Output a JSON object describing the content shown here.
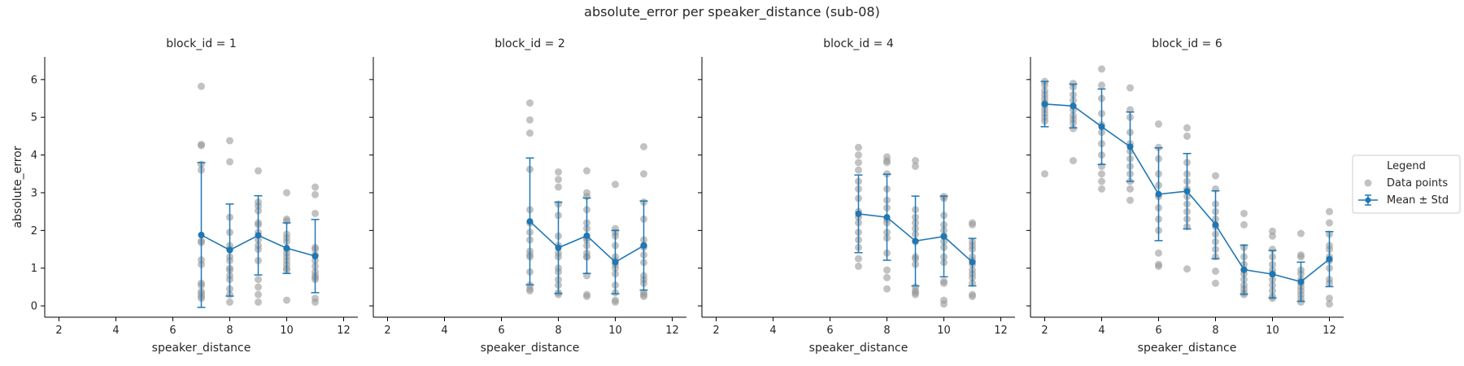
{
  "chart_data": {
    "type": "scatter",
    "title": "absolute_error per speaker_distance (sub-08)",
    "xlabel": "speaker_distance",
    "ylabel": "absolute_error",
    "xlim": [
      1.5,
      12.5
    ],
    "ylim": [
      -0.3,
      6.6
    ],
    "xticks": [
      2,
      4,
      6,
      8,
      10,
      12
    ],
    "yticks": [
      0,
      1,
      2,
      3,
      4,
      5,
      6
    ],
    "grid": false,
    "legend": {
      "title": "Legend",
      "position": "right",
      "entries": [
        "Data points",
        "Mean ± Std"
      ]
    },
    "colors": {
      "points": "#999999",
      "mean": "#1f77b4"
    },
    "panels": [
      {
        "title": "block_id = 1",
        "points": {
          "7": [
            5.82,
            4.28,
            4.25,
            3.75,
            3.6,
            1.72,
            1.68,
            1.22,
            1.1,
            0.6,
            0.55,
            0.38,
            0.32,
            0.25,
            0.2
          ],
          "8": [
            4.38,
            3.82,
            2.35,
            1.95,
            1.6,
            1.5,
            1.3,
            1.2,
            1.0,
            0.95,
            0.8,
            0.7,
            0.45,
            0.3,
            0.1
          ],
          "9": [
            3.58,
            2.75,
            2.65,
            2.52,
            2.2,
            2.15,
            1.95,
            1.75,
            1.6,
            1.5,
            1.2,
            0.7,
            0.5,
            0.3,
            0.1
          ],
          "10": [
            3.0,
            2.3,
            2.25,
            1.9,
            1.8,
            1.7,
            1.5,
            1.4,
            1.3,
            1.2,
            1.1,
            1.0,
            0.95,
            0.15
          ],
          "11": [
            3.15,
            2.95,
            2.45,
            1.55,
            1.5,
            1.35,
            1.2,
            1.05,
            0.9,
            0.8,
            0.75,
            0.7,
            0.2,
            0.1
          ]
        },
        "mean": [
          {
            "x": 7,
            "mean": 1.88,
            "std": 1.92
          },
          {
            "x": 8,
            "mean": 1.48,
            "std": 1.22
          },
          {
            "x": 9,
            "mean": 1.87,
            "std": 1.05
          },
          {
            "x": 10,
            "mean": 1.53,
            "std": 0.67
          },
          {
            "x": 11,
            "mean": 1.32,
            "std": 0.97
          }
        ]
      },
      {
        "title": "block_id = 2",
        "points": {
          "7": [
            5.38,
            4.93,
            4.58,
            3.62,
            2.55,
            2.2,
            1.95,
            1.75,
            1.45,
            1.35,
            1.3,
            0.9,
            0.55,
            0.45,
            0.4
          ],
          "8": [
            3.55,
            3.35,
            3.15,
            2.7,
            2.4,
            1.85,
            1.6,
            1.4,
            1.3,
            1.0,
            0.9,
            0.7,
            0.55,
            0.35,
            0.3
          ],
          "9": [
            3.58,
            3.0,
            2.9,
            2.55,
            2.2,
            2.05,
            1.8,
            1.75,
            1.6,
            1.4,
            1.3,
            1.3,
            0.8,
            0.3,
            0.25
          ],
          "10": [
            3.22,
            2.05,
            1.95,
            1.85,
            1.6,
            1.3,
            1.2,
            1.1,
            1.0,
            0.85,
            0.55,
            0.35,
            0.15,
            0.1
          ],
          "11": [
            4.22,
            3.5,
            2.75,
            2.3,
            1.75,
            1.6,
            1.55,
            1.35,
            1.15,
            0.8,
            0.7,
            0.6,
            0.35,
            0.3,
            0.25
          ]
        },
        "mean": [
          {
            "x": 7,
            "mean": 2.24,
            "std": 1.68
          },
          {
            "x": 8,
            "mean": 1.54,
            "std": 1.21
          },
          {
            "x": 9,
            "mean": 1.86,
            "std": 1.0
          },
          {
            "x": 10,
            "mean": 1.16,
            "std": 0.84
          },
          {
            "x": 11,
            "mean": 1.6,
            "std": 1.18
          }
        ]
      },
      {
        "title": "block_id = 4",
        "points": {
          "7": [
            4.2,
            4.0,
            3.8,
            3.6,
            3.3,
            3.1,
            2.85,
            2.5,
            2.35,
            2.2,
            1.95,
            1.75,
            1.55,
            1.25,
            1.05
          ],
          "8": [
            3.95,
            3.85,
            3.8,
            3.5,
            3.1,
            2.8,
            2.6,
            2.3,
            2.2,
            1.95,
            1.8,
            1.4,
            0.95,
            0.75,
            0.45
          ],
          "9": [
            3.85,
            3.7,
            2.55,
            2.35,
            2.2,
            2.05,
            1.9,
            1.7,
            1.3,
            1.25,
            1.1,
            0.5,
            0.4,
            0.35,
            0.3
          ],
          "10": [
            2.9,
            2.85,
            2.4,
            2.15,
            2.0,
            1.85,
            1.7,
            1.55,
            1.3,
            1.15,
            0.65,
            0.6,
            0.15,
            0.05
          ],
          "11": [
            2.2,
            2.15,
            1.7,
            1.6,
            1.5,
            1.3,
            1.2,
            1.1,
            0.95,
            0.85,
            0.75,
            0.6,
            0.3,
            0.25
          ]
        },
        "mean": [
          {
            "x": 7,
            "mean": 2.44,
            "std": 1.03
          },
          {
            "x": 8,
            "mean": 2.35,
            "std": 1.14
          },
          {
            "x": 9,
            "mean": 1.72,
            "std": 1.19
          },
          {
            "x": 10,
            "mean": 1.84,
            "std": 1.07
          },
          {
            "x": 11,
            "mean": 1.16,
            "std": 0.63
          }
        ]
      },
      {
        "title": "block_id = 6",
        "points": {
          "2": [
            5.95,
            5.85,
            5.7,
            5.6,
            5.5,
            5.4,
            5.3,
            5.2,
            5.1,
            5.0,
            4.9,
            3.5
          ],
          "3": [
            5.9,
            5.8,
            5.6,
            5.45,
            5.3,
            5.2,
            5.05,
            4.95,
            4.85,
            4.7,
            3.85
          ],
          "4": [
            6.28,
            5.85,
            5.5,
            5.1,
            4.8,
            4.6,
            4.3,
            4.0,
            3.7,
            3.5,
            3.3,
            3.1
          ],
          "5": [
            5.78,
            5.2,
            5.0,
            4.6,
            4.3,
            4.1,
            3.9,
            3.7,
            3.5,
            3.3,
            3.1,
            2.8
          ],
          "6": [
            4.82,
            4.2,
            3.9,
            3.5,
            3.2,
            2.9,
            2.6,
            2.3,
            2.0,
            1.4,
            1.1,
            1.05
          ],
          "7": [
            4.72,
            4.5,
            3.8,
            3.5,
            3.3,
            3.1,
            2.9,
            2.7,
            2.5,
            2.3,
            2.1,
            0.98
          ],
          "8": [
            3.45,
            3.1,
            2.7,
            2.5,
            2.3,
            2.1,
            1.9,
            1.7,
            1.5,
            1.3,
            0.92,
            0.6
          ],
          "9": [
            2.45,
            2.15,
            1.55,
            1.3,
            1.1,
            0.95,
            0.85,
            0.7,
            0.55,
            0.45,
            0.35,
            0.3
          ],
          "10": [
            1.98,
            1.85,
            1.5,
            1.3,
            1.1,
            0.95,
            0.85,
            0.7,
            0.55,
            0.4,
            0.25,
            0.2
          ],
          "11": [
            1.92,
            1.35,
            1.3,
            0.95,
            0.85,
            0.7,
            0.6,
            0.5,
            0.4,
            0.3,
            0.2,
            0.1
          ],
          "12": [
            2.5,
            2.2,
            1.9,
            1.6,
            1.5,
            1.3,
            1.2,
            1.0,
            0.7,
            0.6,
            0.2,
            0.05
          ]
        },
        "mean": [
          {
            "x": 2,
            "mean": 5.35,
            "std": 0.6
          },
          {
            "x": 3,
            "mean": 5.3,
            "std": 0.58
          },
          {
            "x": 4,
            "mean": 4.75,
            "std": 1.0
          },
          {
            "x": 5,
            "mean": 4.22,
            "std": 0.92
          },
          {
            "x": 6,
            "mean": 2.96,
            "std": 1.23
          },
          {
            "x": 7,
            "mean": 3.04,
            "std": 1.0
          },
          {
            "x": 8,
            "mean": 2.15,
            "std": 0.9
          },
          {
            "x": 9,
            "mean": 0.96,
            "std": 0.65
          },
          {
            "x": 10,
            "mean": 0.84,
            "std": 0.63
          },
          {
            "x": 11,
            "mean": 0.64,
            "std": 0.52
          },
          {
            "x": 12,
            "mean": 1.24,
            "std": 0.73
          }
        ]
      }
    ]
  }
}
